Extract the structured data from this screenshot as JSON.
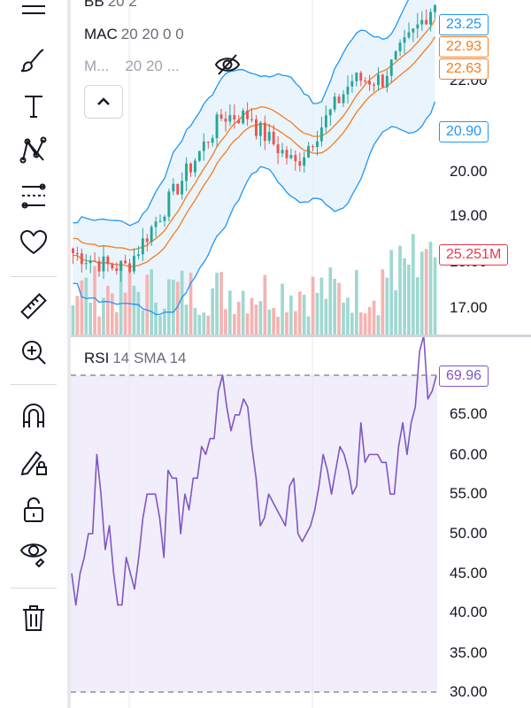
{
  "toolbar": {
    "tools": [
      {
        "name": "lines-menu-icon"
      },
      {
        "name": "brush-icon"
      },
      {
        "name": "text-icon"
      },
      {
        "name": "pattern-icon"
      },
      {
        "name": "fib-retracement-icon"
      },
      {
        "name": "favorites-heart-icon"
      },
      {
        "name": "ruler-icon"
      },
      {
        "name": "zoom-in-icon"
      },
      {
        "name": "magnet-icon"
      },
      {
        "name": "lock-drawing-icon"
      },
      {
        "name": "unlock-icon"
      },
      {
        "name": "eye-icon"
      },
      {
        "name": "trash-icon"
      }
    ]
  },
  "legend": {
    "bb_name": "BB",
    "bb_values": "20 2",
    "mac_name": "MAC",
    "mac_values": "20 20 0 0",
    "m_name": "M...",
    "m_values": "20 20 ..."
  },
  "price_axis": {
    "labels": [
      "22.00",
      "20.00",
      "19.00",
      "17.00"
    ],
    "partial_label": "18.00"
  },
  "price_tags": [
    {
      "value": "23.25",
      "color": "#2196f3"
    },
    {
      "value": "22.93",
      "color": "#f57c1f"
    },
    {
      "value": "22.63",
      "color": "#f57c1f"
    },
    {
      "value": "20.90",
      "color": "#2196f3"
    },
    {
      "value": "25.251M",
      "color": "#f23645"
    }
  ],
  "rsi": {
    "title": "RSI",
    "params": "14 SMA 14",
    "value_tag": "69.96",
    "axis_labels": [
      "65.00",
      "60.00",
      "55.00",
      "50.00",
      "45.00",
      "40.00",
      "35.00",
      "30.00"
    ],
    "overbought": 70,
    "oversold": 30,
    "values": [
      45,
      41,
      45,
      47,
      50,
      50,
      60,
      55,
      48,
      51,
      45,
      41,
      41,
      47,
      45,
      43,
      47,
      52,
      55,
      55,
      55,
      52,
      47,
      58,
      57,
      57,
      50,
      55,
      53,
      57,
      57,
      61,
      60,
      62,
      62,
      68,
      70,
      66,
      63,
      65,
      65,
      67,
      66,
      61,
      57,
      51,
      52,
      55,
      54,
      53,
      52,
      51,
      56,
      57,
      50,
      49,
      50,
      51,
      53,
      56,
      60,
      58,
      55,
      58,
      61,
      60,
      58,
      55,
      56,
      64,
      59,
      60,
      60,
      60,
      59,
      59,
      55,
      55,
      61,
      64,
      60,
      64,
      66,
      73,
      75,
      67,
      68,
      69.96
    ]
  },
  "colors": {
    "up": "#26a69a",
    "down": "#ef5350",
    "bb": "#2196f3",
    "ma": "#f57c1f",
    "rsi": "#7e57c2",
    "rsi_band": "#f1edfa"
  }
}
